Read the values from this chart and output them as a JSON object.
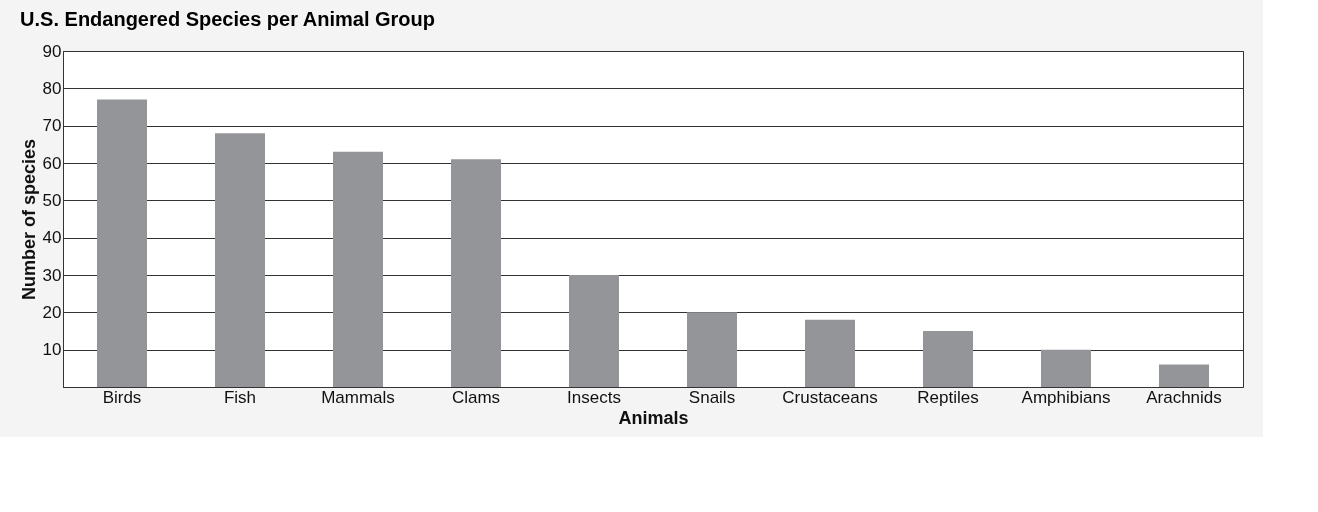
{
  "chart_data": {
    "type": "bar",
    "title": "U.S. Endangered Species per Animal Group",
    "xlabel": "Animals",
    "ylabel": "Number of species",
    "categories": [
      "Birds",
      "Fish",
      "Mammals",
      "Clams",
      "Insects",
      "Snails",
      "Crustaceans",
      "Reptiles",
      "Amphibians",
      "Arachnids"
    ],
    "values": [
      77,
      68,
      63,
      61,
      30,
      20,
      18,
      15,
      10,
      6
    ],
    "color": "#939598",
    "ylim": [
      0,
      90
    ],
    "yticks": [
      10,
      20,
      30,
      40,
      50,
      60,
      70,
      80,
      90
    ],
    "grid": "y"
  }
}
